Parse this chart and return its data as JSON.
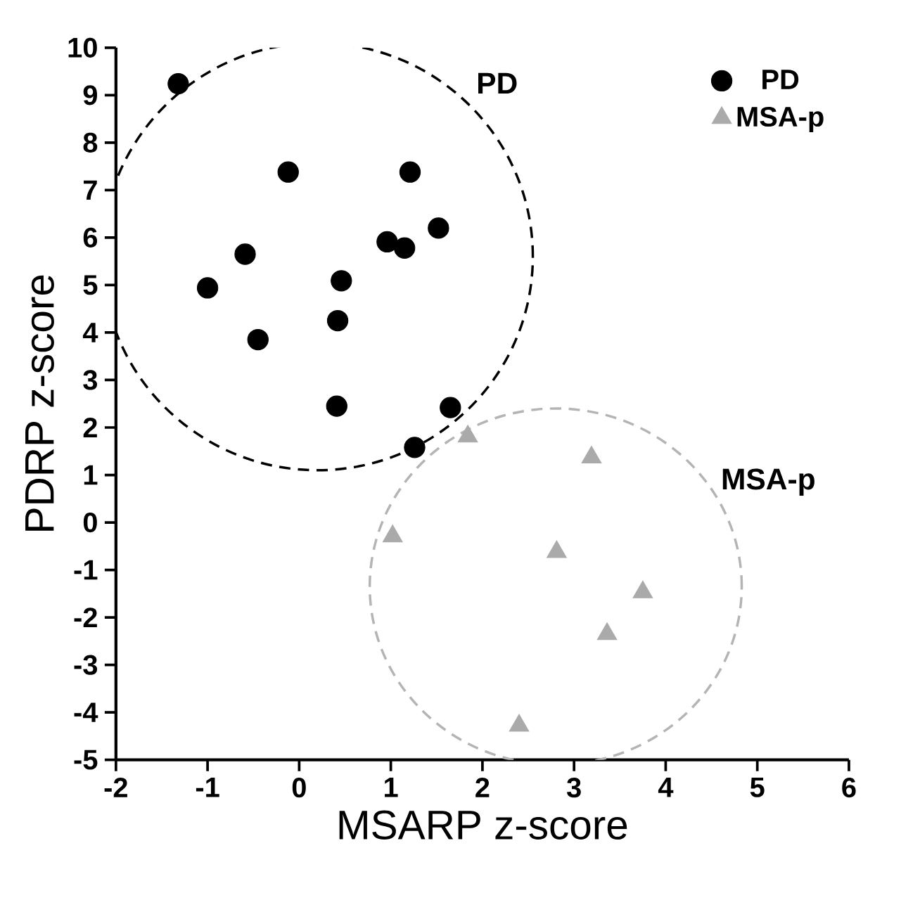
{
  "chart_data": {
    "type": "scatter",
    "xlabel": "MSARP z-score",
    "ylabel": "PDRP z-score",
    "xlim": [
      -2,
      6
    ],
    "xticks": [
      -2,
      -1,
      0,
      1,
      2,
      3,
      4,
      5,
      6
    ],
    "ylim": [
      -5,
      10
    ],
    "yticks": [
      -5,
      -4,
      -3,
      -2,
      -1,
      0,
      1,
      2,
      3,
      4,
      5,
      6,
      7,
      8,
      9,
      10
    ],
    "grid": false,
    "legend": "top right",
    "series": [
      {
        "name": "PD",
        "color": "#000000",
        "marker": "circle",
        "x": [
          -1.32,
          -0.12,
          1.21,
          1.52,
          0.96,
          1.15,
          -0.59,
          -1.0,
          0.46,
          0.42,
          -0.45,
          0.41,
          1.65,
          1.26
        ],
        "values": [
          9.24,
          7.38,
          7.38,
          6.2,
          5.91,
          5.78,
          5.65,
          4.94,
          5.09,
          4.25,
          3.85,
          2.45,
          2.42,
          1.58
        ]
      },
      {
        "name": "MSA-p",
        "color": "#aaaaaa",
        "marker": "triangle",
        "x": [
          1.84,
          3.19,
          1.02,
          2.81,
          3.75,
          3.36,
          2.4
        ],
        "values": [
          1.81,
          1.37,
          -0.29,
          -0.62,
          -1.47,
          -2.35,
          -4.28
        ]
      }
    ],
    "annotations": [
      "PD",
      "MSA-p"
    ]
  }
}
